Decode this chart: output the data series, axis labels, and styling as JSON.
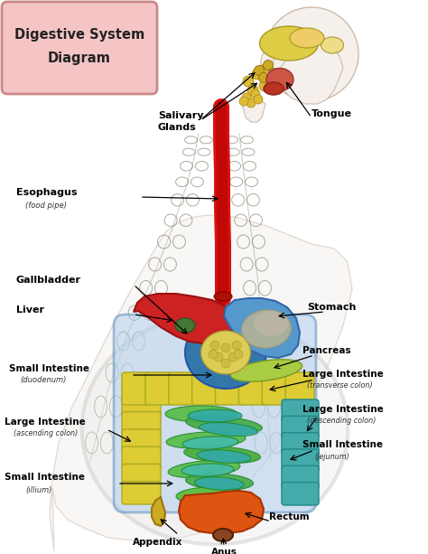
{
  "title_line1": "Digestive System",
  "title_line2": "Diagram",
  "bg_color": "#ffffff",
  "title_box_color_top": "#f5c5c5",
  "title_box_color_bot": "#e89090",
  "title_box_edge": "#cc8080",
  "colors": {
    "esophagus": "#dd1111",
    "esophagus_dark": "#aa0000",
    "stomach_blue": "#5599cc",
    "stomach_light": "#aaccee",
    "stomach_tan": "#ccbb88",
    "liver_red": "#cc2222",
    "liver_dark": "#991111",
    "liver_green_spot": "#558833",
    "gallbladder": "#336611",
    "duodenum_blue": "#3377aa",
    "duodenum_yellow": "#ddcc44",
    "pancreas_yellow": "#ddcc55",
    "transverse_blue": "#3388bb",
    "transverse_yellow": "#ddcc33",
    "ascending_yellow": "#ddcc33",
    "descending_teal": "#44aaaa",
    "small_int_green": "#44bb44",
    "small_int_teal": "#33aaaa",
    "rectum_orange": "#dd5511",
    "appendix_yellow": "#ccaa22",
    "anus_dark": "#993311",
    "body_skin": "#f5f0ec",
    "body_line": "#ccbbaa",
    "braid_line": "#888877",
    "ellipse_fill": "#e8e8e8",
    "ellipse_edge": "#bbbbbb"
  },
  "labels": {
    "salivary": [
      "Salivary",
      "Glands"
    ],
    "tongue": "Tongue",
    "esophagus": "Esophagus",
    "esophagus_sub": "(food pipe)",
    "gallbladder": "Gallbladder",
    "liver": "Liver",
    "si_duo": "Small Intestine",
    "si_duo_sub": "(duodenum)",
    "li_asc": "Large Intestine",
    "li_asc_sub": "(ascending colon)",
    "si_ill": "Small Intestine",
    "si_ill_sub": "(illium)",
    "appendix": "Appendix",
    "anus": "Anus",
    "rectum": "Rectum",
    "stomach": "Stomach",
    "pancreas": "Pancreas",
    "li_trans": "Large Intestine",
    "li_trans_sub": "(transverse colon)",
    "li_desc": "Large Intestine",
    "li_desc_sub": "(descending colon)",
    "si_jej": "Small Intestine",
    "si_jej_sub": "(jejunum)"
  }
}
